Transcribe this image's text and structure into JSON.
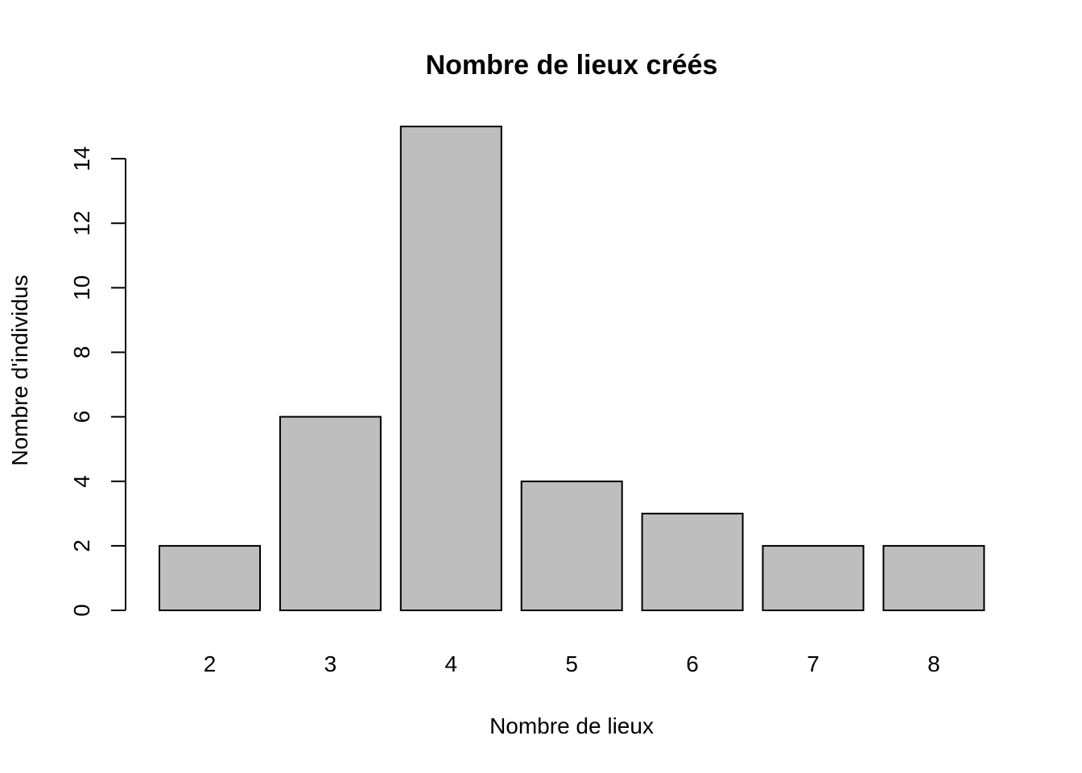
{
  "chart_data": {
    "type": "bar",
    "title": "Nombre de lieux créés",
    "xlabel": "Nombre de lieux",
    "ylabel": "Nombre d'individus",
    "categories": [
      "2",
      "3",
      "4",
      "5",
      "6",
      "7",
      "8"
    ],
    "values": [
      2,
      6,
      15,
      4,
      3,
      2,
      2
    ],
    "y_ticks": [
      "0",
      "2",
      "4",
      "6",
      "8",
      "10",
      "12",
      "14"
    ],
    "ylim": [
      0,
      15
    ],
    "grid": false,
    "legend": "none",
    "colors": {
      "bar_fill": "#bebebe",
      "bar_stroke": "#000000",
      "text": "#000000",
      "background": "#ffffff"
    }
  }
}
